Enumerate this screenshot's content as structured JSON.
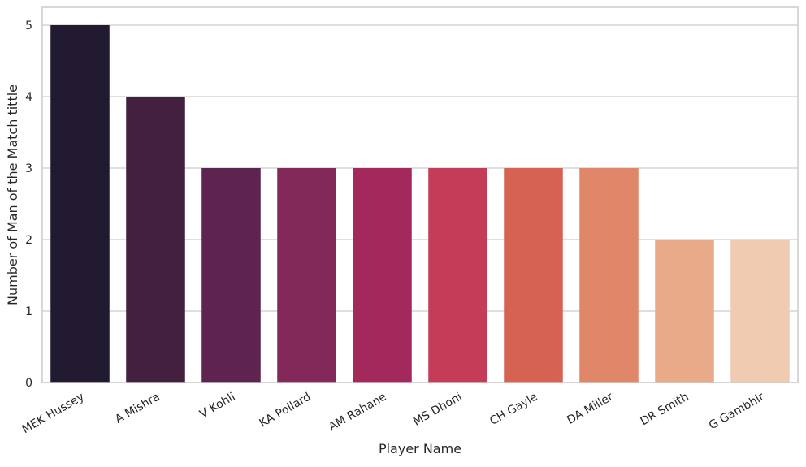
{
  "chart_data": {
    "type": "bar",
    "title": "",
    "xlabel": "Player Name",
    "ylabel": "Number of Man of the Match tittle",
    "categories": [
      "MEK Hussey",
      "A Mishra",
      "V Kohli",
      "KA Pollard",
      "AM Rahane",
      "MS Dhoni",
      "CH Gayle",
      "DA Miller",
      "DR Smith",
      "G Gambhir"
    ],
    "values": [
      5,
      4,
      3,
      3,
      3,
      3,
      3,
      3,
      2,
      2
    ],
    "colors": [
      "#221a31",
      "#431f40",
      "#5f2350",
      "#822959",
      "#a3285c",
      "#c43c58",
      "#d66252",
      "#e0876a",
      "#e8aa89",
      "#f0cbb2"
    ],
    "yticks": [
      0,
      1,
      2,
      3,
      4,
      5
    ],
    "ylim": [
      0,
      5.25
    ],
    "grid": "horizontal",
    "xtick_rotation": -30
  }
}
